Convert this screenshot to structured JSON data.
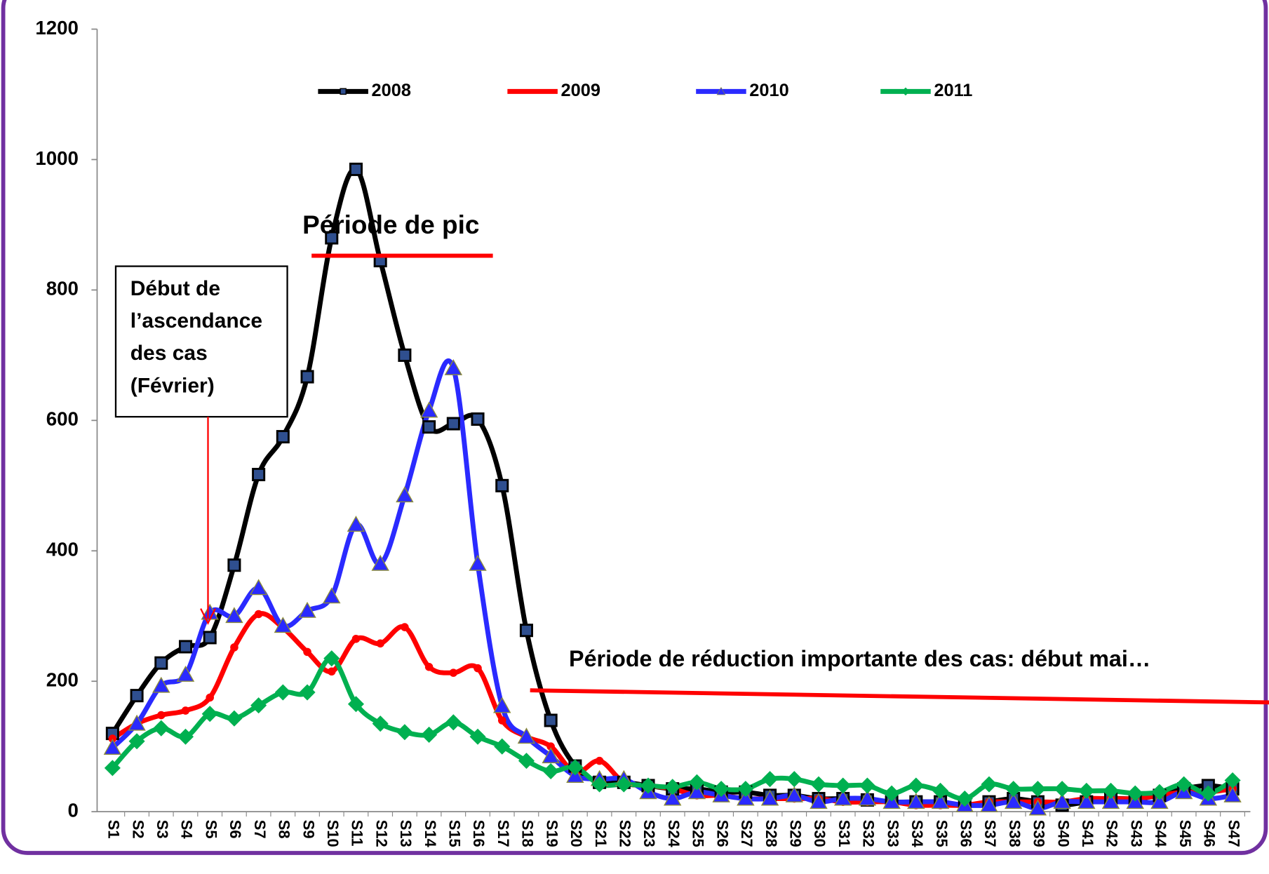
{
  "chart_data": {
    "type": "line",
    "categories": [
      "S1",
      "S2",
      "S3",
      "S4",
      "S5",
      "S6",
      "S7",
      "S8",
      "S9",
      "S10",
      "S11",
      "S12",
      "S13",
      "S14",
      "S15",
      "S16",
      "S17",
      "S18",
      "S19",
      "S20",
      "S21",
      "S22",
      "S23",
      "S24",
      "S25",
      "S26",
      "S27",
      "S28",
      "S29",
      "S30",
      "S31",
      "S32",
      "S33",
      "S34",
      "S35",
      "S36",
      "S37",
      "S38",
      "S39",
      "S40",
      "S41",
      "S42",
      "S43",
      "S44",
      "S45",
      "S46",
      "S47"
    ],
    "series": [
      {
        "name": "2008",
        "color": "#000000",
        "marker": "square",
        "values": [
          120,
          178,
          228,
          253,
          267,
          378,
          517,
          575,
          667,
          880,
          985,
          845,
          700,
          590,
          595,
          602,
          500,
          278,
          140,
          70,
          45,
          45,
          40,
          35,
          35,
          30,
          30,
          25,
          25,
          20,
          20,
          18,
          15,
          15,
          15,
          10,
          15,
          20,
          15,
          10,
          15,
          20,
          20,
          25,
          35,
          40,
          35
        ]
      },
      {
        "name": "2009",
        "color": "#ff0000",
        "marker": "circle",
        "values": [
          112,
          135,
          148,
          155,
          175,
          252,
          303,
          282,
          245,
          215,
          265,
          258,
          283,
          222,
          213,
          220,
          140,
          115,
          100,
          60,
          78,
          45,
          40,
          35,
          25,
          25,
          20,
          20,
          20,
          20,
          15,
          15,
          15,
          10,
          10,
          10,
          15,
          15,
          15,
          15,
          20,
          20,
          20,
          25,
          30,
          30,
          35
        ]
      },
      {
        "name": "2010",
        "color": "#2a2aff",
        "marker": "triangle",
        "values": [
          98,
          135,
          193,
          210,
          305,
          300,
          343,
          285,
          308,
          330,
          440,
          380,
          485,
          615,
          680,
          380,
          162,
          115,
          85,
          55,
          50,
          50,
          30,
          20,
          30,
          25,
          20,
          20,
          25,
          15,
          20,
          20,
          15,
          15,
          15,
          10,
          10,
          15,
          5,
          15,
          15,
          15,
          15,
          15,
          30,
          20,
          25
        ]
      },
      {
        "name": "2011",
        "color": "#00b050",
        "marker": "diamond",
        "values": [
          67,
          108,
          128,
          115,
          150,
          143,
          163,
          183,
          183,
          235,
          165,
          135,
          122,
          118,
          137,
          115,
          100,
          78,
          62,
          68,
          42,
          42,
          40,
          38,
          45,
          35,
          35,
          50,
          50,
          42,
          40,
          40,
          28,
          40,
          32,
          20,
          42,
          35,
          35,
          35,
          32,
          32,
          28,
          30,
          42,
          28,
          48
        ]
      }
    ],
    "ylim": [
      0,
      1200
    ],
    "yticks": [
      0,
      200,
      400,
      600,
      800,
      1000,
      1200
    ],
    "annotations": {
      "peak": "Période de pic",
      "onset": [
        "Début de",
        "l’ascendance",
        "des cas",
        "(Février)"
      ],
      "reduction": "Période de réduction importante des cas: début mai…"
    }
  }
}
